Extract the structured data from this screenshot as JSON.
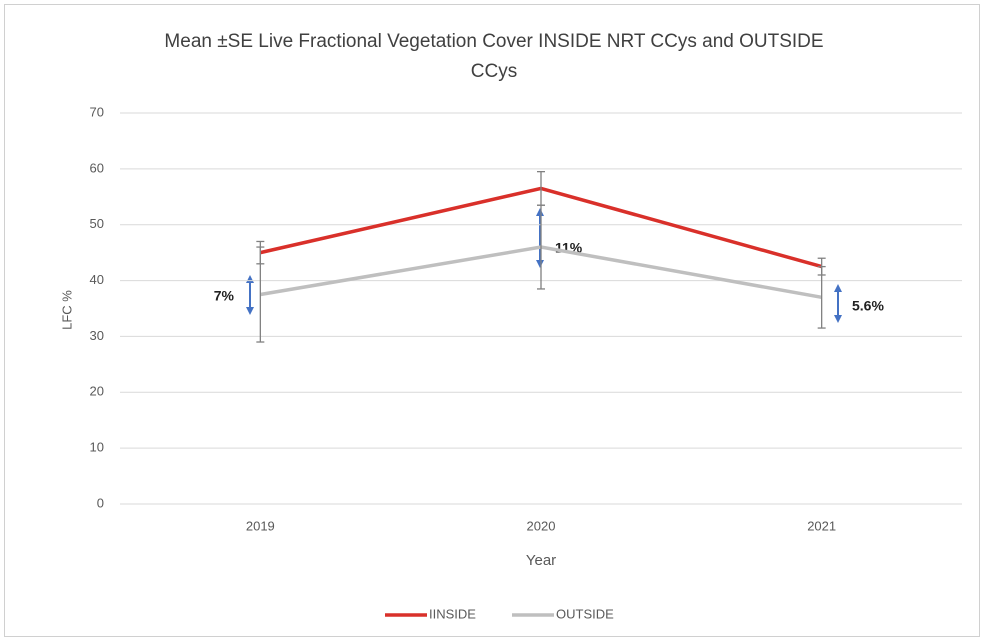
{
  "chart_data": {
    "type": "line",
    "title": "Mean ±SE Live Fractional Vegetation Cover INSIDE NRT CCys and OUTSIDE CCys",
    "x_label": "Year",
    "y_label": "LFC %",
    "categories": [
      "2019",
      "2020",
      "2021"
    ],
    "series": [
      {
        "name": "IINSIDE",
        "color": "#d9302a",
        "values": [
          45,
          56.5,
          42.5
        ],
        "errors": [
          2,
          3,
          1.5
        ]
      },
      {
        "name": "OUTSIDE",
        "color": "#bfbfbf",
        "values": [
          37.5,
          46,
          37
        ],
        "errors": [
          8.5,
          7.5,
          5.5
        ]
      }
    ],
    "annotations": [
      "7%",
      "11%",
      "5.6%"
    ],
    "ylim": [
      0,
      70
    ],
    "yticks": [
      0,
      10,
      20,
      30,
      40,
      50,
      60,
      70
    ],
    "grid": true,
    "legend": "bottom"
  }
}
